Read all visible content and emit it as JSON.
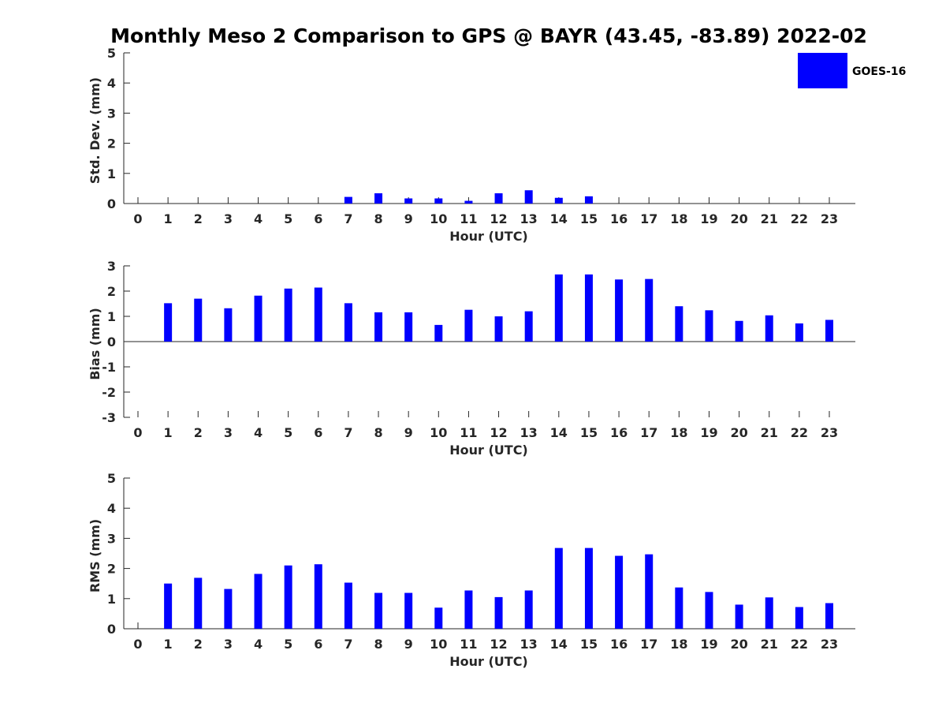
{
  "title": "Monthly Meso 2 Comparison to GPS @ BAYR (43.45, -83.89) 2022-02",
  "legend": {
    "label": "GOES-16",
    "color": "#0000ff"
  },
  "bar_color": "#0000ff",
  "chart_data": [
    {
      "type": "bar",
      "xlabel": "Hour (UTC)",
      "ylabel": "Std. Dev. (mm)",
      "ylim": [
        0,
        5
      ],
      "yticks": [
        "0",
        "1",
        "2",
        "3",
        "4",
        "5"
      ],
      "categories": [
        "0",
        "1",
        "2",
        "3",
        "4",
        "5",
        "6",
        "7",
        "8",
        "9",
        "10",
        "11",
        "12",
        "13",
        "14",
        "15",
        "16",
        "17",
        "18",
        "19",
        "20",
        "21",
        "22",
        "23"
      ],
      "series": [
        {
          "name": "GOES-16",
          "values": [
            0,
            0,
            0,
            0,
            0,
            0,
            0,
            0.22,
            0.34,
            0.17,
            0.17,
            0.09,
            0.34,
            0.44,
            0.19,
            0.24,
            0,
            0,
            0,
            0,
            0,
            0,
            0,
            0
          ]
        }
      ]
    },
    {
      "type": "bar",
      "xlabel": "Hour (UTC)",
      "ylabel": "Bias (mm)",
      "ylim": [
        -3,
        3
      ],
      "yticks": [
        "-3",
        "-2",
        "-1",
        "0",
        "1",
        "2",
        "3"
      ],
      "categories": [
        "0",
        "1",
        "2",
        "3",
        "4",
        "5",
        "6",
        "7",
        "8",
        "9",
        "10",
        "11",
        "12",
        "13",
        "14",
        "15",
        "16",
        "17",
        "18",
        "19",
        "20",
        "21",
        "22",
        "23"
      ],
      "series": [
        {
          "name": "GOES-16",
          "values": [
            0,
            1.52,
            1.7,
            1.32,
            1.82,
            2.1,
            2.14,
            1.52,
            1.16,
            1.16,
            0.66,
            1.26,
            1.0,
            1.2,
            2.66,
            2.66,
            2.46,
            2.48,
            1.4,
            1.24,
            0.82,
            1.04,
            0.72,
            0.86
          ]
        }
      ]
    },
    {
      "type": "bar",
      "xlabel": "Hour (UTC)",
      "ylabel": "RMS (mm)",
      "ylim": [
        0,
        5
      ],
      "yticks": [
        "0",
        "1",
        "2",
        "3",
        "4",
        "5"
      ],
      "categories": [
        "0",
        "1",
        "2",
        "3",
        "4",
        "5",
        "6",
        "7",
        "8",
        "9",
        "10",
        "11",
        "12",
        "13",
        "14",
        "15",
        "16",
        "17",
        "18",
        "19",
        "20",
        "21",
        "22",
        "23"
      ],
      "series": [
        {
          "name": "GOES-16",
          "values": [
            0,
            1.5,
            1.69,
            1.32,
            1.82,
            2.1,
            2.14,
            1.53,
            1.19,
            1.19,
            0.7,
            1.27,
            1.05,
            1.27,
            2.68,
            2.68,
            2.42,
            2.47,
            1.37,
            1.22,
            0.8,
            1.04,
            0.72,
            0.85
          ]
        }
      ]
    }
  ]
}
